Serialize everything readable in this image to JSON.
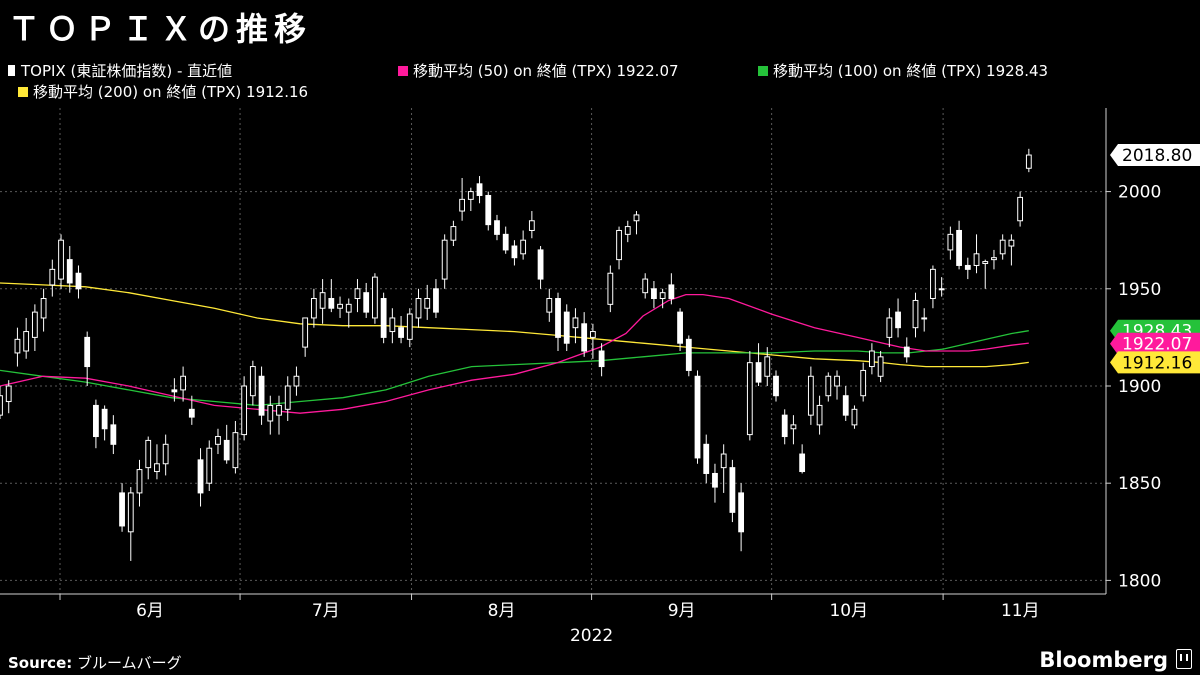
{
  "title": "ＴＯＰＩＸの推移",
  "legend": [
    {
      "label": "TOPIX (東証株価指数) - 直近値",
      "color": "#ffffff",
      "icon": "candlestick-icon"
    },
    {
      "label": "移動平均 (50)  on 終値 (TPX) 1922.07",
      "color": "#ff1a9c"
    },
    {
      "label": "移動平均 (100)  on 終値 (TPX) 1928.43",
      "color": "#25c23a"
    },
    {
      "label": "移動平均 (200)  on 終値 (TPX)   1912.16",
      "color": "#ffe838"
    }
  ],
  "footer": {
    "source_label": "Source:",
    "source_text": "ブルームバーグ",
    "brand": "Bloomberg"
  },
  "chart_data": {
    "type": "candlestick",
    "year_label": "2022",
    "x_ticks": [
      "6月",
      "7月",
      "8月",
      "9月",
      "10月",
      "11月"
    ],
    "x_tick_days": [
      17.5,
      38,
      58.5,
      79.5,
      99,
      119
    ],
    "x_separator_days": [
      7,
      28,
      48,
      69,
      90,
      110
    ],
    "x_range": [
      0,
      129
    ],
    "y_ticks": [
      1800,
      1850,
      1900,
      1950,
      2000
    ],
    "ylim": [
      1793,
      2043
    ],
    "grid": true,
    "last_value_labels": [
      {
        "value": "2018.80",
        "bg": "#ffffff",
        "fg": "#000000",
        "series": "price"
      },
      {
        "value": "1928.43",
        "bg": "#25c23a",
        "fg": "#ffffff",
        "series": "ma100"
      },
      {
        "value": "1922.07",
        "bg": "#ff1a9c",
        "fg": "#ffffff",
        "series": "ma50"
      },
      {
        "value": "1912.16",
        "bg": "#ffe838",
        "fg": "#000000",
        "series": "ma200"
      }
    ],
    "candles": [
      {
        "o": 1885,
        "h": 1900,
        "l": 1883,
        "c": 1895
      },
      {
        "o": 1892,
        "h": 1903,
        "l": 1886,
        "c": 1900
      },
      {
        "o": 1917,
        "h": 1930,
        "l": 1910,
        "c": 1924
      },
      {
        "o": 1918,
        "h": 1935,
        "l": 1914,
        "c": 1928
      },
      {
        "o": 1925,
        "h": 1942,
        "l": 1918,
        "c": 1938
      },
      {
        "o": 1935,
        "h": 1950,
        "l": 1928,
        "c": 1945
      },
      {
        "o": 1952,
        "h": 1965,
        "l": 1946,
        "c": 1960
      },
      {
        "o": 1955,
        "h": 1978,
        "l": 1950,
        "c": 1975
      },
      {
        "o": 1965,
        "h": 1972,
        "l": 1948,
        "c": 1953
      },
      {
        "o": 1958,
        "h": 1962,
        "l": 1945,
        "c": 1950
      },
      {
        "o": 1925,
        "h": 1928,
        "l": 1900,
        "c": 1910
      },
      {
        "o": 1890,
        "h": 1893,
        "l": 1868,
        "c": 1874
      },
      {
        "o": 1888,
        "h": 1890,
        "l": 1872,
        "c": 1878
      },
      {
        "o": 1880,
        "h": 1885,
        "l": 1865,
        "c": 1870
      },
      {
        "o": 1845,
        "h": 1850,
        "l": 1825,
        "c": 1828
      },
      {
        "o": 1825,
        "h": 1848,
        "l": 1810,
        "c": 1845
      },
      {
        "o": 1845,
        "h": 1862,
        "l": 1838,
        "c": 1857
      },
      {
        "o": 1858,
        "h": 1874,
        "l": 1852,
        "c": 1872
      },
      {
        "o": 1856,
        "h": 1870,
        "l": 1852,
        "c": 1860
      },
      {
        "o": 1860,
        "h": 1875,
        "l": 1854,
        "c": 1870
      },
      {
        "o": 1898,
        "h": 1904,
        "l": 1892,
        "c": 1897
      },
      {
        "o": 1898,
        "h": 1910,
        "l": 1892,
        "c": 1905
      },
      {
        "o": 1888,
        "h": 1895,
        "l": 1880,
        "c": 1884
      },
      {
        "o": 1862,
        "h": 1868,
        "l": 1838,
        "c": 1845
      },
      {
        "o": 1850,
        "h": 1872,
        "l": 1846,
        "c": 1868
      },
      {
        "o": 1870,
        "h": 1878,
        "l": 1865,
        "c": 1874
      },
      {
        "o": 1872,
        "h": 1880,
        "l": 1860,
        "c": 1862
      },
      {
        "o": 1858,
        "h": 1882,
        "l": 1855,
        "c": 1876
      },
      {
        "o": 1875,
        "h": 1905,
        "l": 1872,
        "c": 1900
      },
      {
        "o": 1895,
        "h": 1913,
        "l": 1890,
        "c": 1910
      },
      {
        "o": 1905,
        "h": 1910,
        "l": 1880,
        "c": 1885
      },
      {
        "o": 1882,
        "h": 1895,
        "l": 1875,
        "c": 1890
      },
      {
        "o": 1885,
        "h": 1895,
        "l": 1875,
        "c": 1890
      },
      {
        "o": 1888,
        "h": 1905,
        "l": 1882,
        "c": 1900
      },
      {
        "o": 1900,
        "h": 1910,
        "l": 1895,
        "c": 1905
      },
      {
        "o": 1920,
        "h": 1935,
        "l": 1915,
        "c": 1935
      },
      {
        "o": 1935,
        "h": 1950,
        "l": 1930,
        "c": 1945
      },
      {
        "o": 1940,
        "h": 1955,
        "l": 1932,
        "c": 1948
      },
      {
        "o": 1945,
        "h": 1955,
        "l": 1938,
        "c": 1940
      },
      {
        "o": 1940,
        "h": 1946,
        "l": 1935,
        "c": 1942
      },
      {
        "o": 1938,
        "h": 1945,
        "l": 1930,
        "c": 1942
      },
      {
        "o": 1945,
        "h": 1955,
        "l": 1938,
        "c": 1950
      },
      {
        "o": 1948,
        "h": 1953,
        "l": 1935,
        "c": 1938
      },
      {
        "o": 1935,
        "h": 1958,
        "l": 1932,
        "c": 1956
      },
      {
        "o": 1945,
        "h": 1948,
        "l": 1922,
        "c": 1925
      },
      {
        "o": 1928,
        "h": 1940,
        "l": 1922,
        "c": 1935
      },
      {
        "o": 1930,
        "h": 1936,
        "l": 1922,
        "c": 1925
      },
      {
        "o": 1924,
        "h": 1940,
        "l": 1920,
        "c": 1937
      },
      {
        "o": 1935,
        "h": 1950,
        "l": 1930,
        "c": 1945
      },
      {
        "o": 1940,
        "h": 1952,
        "l": 1934,
        "c": 1945
      },
      {
        "o": 1950,
        "h": 1955,
        "l": 1935,
        "c": 1938
      },
      {
        "o": 1955,
        "h": 1978,
        "l": 1950,
        "c": 1975
      },
      {
        "o": 1975,
        "h": 1985,
        "l": 1972,
        "c": 1982
      },
      {
        "o": 1990,
        "h": 2007,
        "l": 1985,
        "c": 1996
      },
      {
        "o": 1996,
        "h": 2002,
        "l": 1990,
        "c": 2000
      },
      {
        "o": 2004,
        "h": 2008,
        "l": 1994,
        "c": 1998
      },
      {
        "o": 1998,
        "h": 2000,
        "l": 1980,
        "c": 1983
      },
      {
        "o": 1985,
        "h": 1988,
        "l": 1975,
        "c": 1978
      },
      {
        "o": 1978,
        "h": 1982,
        "l": 1968,
        "c": 1970
      },
      {
        "o": 1972,
        "h": 1975,
        "l": 1962,
        "c": 1966
      },
      {
        "o": 1968,
        "h": 1980,
        "l": 1965,
        "c": 1975
      },
      {
        "o": 1980,
        "h": 1990,
        "l": 1976,
        "c": 1985
      },
      {
        "o": 1970,
        "h": 1972,
        "l": 1950,
        "c": 1955
      },
      {
        "o": 1938,
        "h": 1950,
        "l": 1933,
        "c": 1945
      },
      {
        "o": 1945,
        "h": 1948,
        "l": 1918,
        "c": 1925
      },
      {
        "o": 1938,
        "h": 1942,
        "l": 1918,
        "c": 1922
      },
      {
        "o": 1930,
        "h": 1940,
        "l": 1922,
        "c": 1935
      },
      {
        "o": 1932,
        "h": 1938,
        "l": 1915,
        "c": 1918
      },
      {
        "o": 1925,
        "h": 1932,
        "l": 1914,
        "c": 1928
      },
      {
        "o": 1918,
        "h": 1922,
        "l": 1905,
        "c": 1910
      },
      {
        "o": 1942,
        "h": 1962,
        "l": 1938,
        "c": 1958
      },
      {
        "o": 1965,
        "h": 1982,
        "l": 1960,
        "c": 1980
      },
      {
        "o": 1978,
        "h": 1985,
        "l": 1974,
        "c": 1982
      },
      {
        "o": 1985,
        "h": 1990,
        "l": 1978,
        "c": 1988
      },
      {
        "o": 1948,
        "h": 1958,
        "l": 1945,
        "c": 1955
      },
      {
        "o": 1950,
        "h": 1954,
        "l": 1940,
        "c": 1945
      },
      {
        "o": 1945,
        "h": 1950,
        "l": 1940,
        "c": 1948
      },
      {
        "o": 1952,
        "h": 1958,
        "l": 1942,
        "c": 1945
      },
      {
        "o": 1938,
        "h": 1940,
        "l": 1918,
        "c": 1922
      },
      {
        "o": 1924,
        "h": 1926,
        "l": 1905,
        "c": 1908
      },
      {
        "o": 1905,
        "h": 1908,
        "l": 1860,
        "c": 1863
      },
      {
        "o": 1870,
        "h": 1875,
        "l": 1850,
        "c": 1855
      },
      {
        "o": 1855,
        "h": 1860,
        "l": 1840,
        "c": 1848
      },
      {
        "o": 1858,
        "h": 1870,
        "l": 1845,
        "c": 1865
      },
      {
        "o": 1858,
        "h": 1862,
        "l": 1830,
        "c": 1835
      },
      {
        "o": 1845,
        "h": 1850,
        "l": 1815,
        "c": 1825
      },
      {
        "o": 1875,
        "h": 1918,
        "l": 1872,
        "c": 1912
      },
      {
        "o": 1912,
        "h": 1922,
        "l": 1900,
        "c": 1902
      },
      {
        "o": 1905,
        "h": 1920,
        "l": 1900,
        "c": 1915
      },
      {
        "o": 1905,
        "h": 1908,
        "l": 1892,
        "c": 1895
      },
      {
        "o": 1885,
        "h": 1888,
        "l": 1870,
        "c": 1874
      },
      {
        "o": 1878,
        "h": 1885,
        "l": 1870,
        "c": 1880
      },
      {
        "o": 1865,
        "h": 1870,
        "l": 1855,
        "c": 1856
      },
      {
        "o": 1885,
        "h": 1910,
        "l": 1880,
        "c": 1905
      },
      {
        "o": 1880,
        "h": 1895,
        "l": 1875,
        "c": 1890
      },
      {
        "o": 1895,
        "h": 1907,
        "l": 1892,
        "c": 1905
      },
      {
        "o": 1900,
        "h": 1908,
        "l": 1893,
        "c": 1905
      },
      {
        "o": 1895,
        "h": 1900,
        "l": 1882,
        "c": 1885
      },
      {
        "o": 1880,
        "h": 1890,
        "l": 1878,
        "c": 1888
      },
      {
        "o": 1895,
        "h": 1912,
        "l": 1892,
        "c": 1908
      },
      {
        "o": 1910,
        "h": 1922,
        "l": 1906,
        "c": 1918
      },
      {
        "o": 1905,
        "h": 1918,
        "l": 1902,
        "c": 1915
      },
      {
        "o": 1925,
        "h": 1940,
        "l": 1920,
        "c": 1935
      },
      {
        "o": 1938,
        "h": 1945,
        "l": 1925,
        "c": 1930
      },
      {
        "o": 1920,
        "h": 1925,
        "l": 1912,
        "c": 1915
      },
      {
        "o": 1930,
        "h": 1948,
        "l": 1925,
        "c": 1944
      },
      {
        "o": 1935,
        "h": 1940,
        "l": 1928,
        "c": 1935
      },
      {
        "o": 1945,
        "h": 1962,
        "l": 1940,
        "c": 1960
      },
      {
        "o": 1950,
        "h": 1956,
        "l": 1946,
        "c": 1950
      },
      {
        "o": 1970,
        "h": 1982,
        "l": 1965,
        "c": 1978
      },
      {
        "o": 1980,
        "h": 1985,
        "l": 1960,
        "c": 1962
      },
      {
        "o": 1962,
        "h": 1966,
        "l": 1955,
        "c": 1960
      },
      {
        "o": 1962,
        "h": 1978,
        "l": 1958,
        "c": 1968
      },
      {
        "o": 1963,
        "h": 1965,
        "l": 1950,
        "c": 1964
      },
      {
        "o": 1965,
        "h": 1970,
        "l": 1960,
        "c": 1966
      },
      {
        "o": 1968,
        "h": 1978,
        "l": 1965,
        "c": 1975
      },
      {
        "o": 1972,
        "h": 1978,
        "l": 1962,
        "c": 1975
      },
      {
        "o": 1985,
        "h": 2000,
        "l": 1982,
        "c": 1997
      },
      {
        "o": 2012,
        "h": 2022,
        "l": 2010,
        "c": 2018.8
      }
    ],
    "ma50": [
      [
        0,
        1900
      ],
      [
        5,
        1905
      ],
      [
        10,
        1904
      ],
      [
        15,
        1900
      ],
      [
        20,
        1895
      ],
      [
        25,
        1890
      ],
      [
        30,
        1888
      ],
      [
        35,
        1886
      ],
      [
        40,
        1888
      ],
      [
        45,
        1892
      ],
      [
        50,
        1898
      ],
      [
        55,
        1903
      ],
      [
        60,
        1906
      ],
      [
        65,
        1912
      ],
      [
        70,
        1920
      ],
      [
        73,
        1927
      ],
      [
        75,
        1936
      ],
      [
        78,
        1944
      ],
      [
        80,
        1947
      ],
      [
        82,
        1947
      ],
      [
        85,
        1945
      ],
      [
        90,
        1937
      ],
      [
        95,
        1930
      ],
      [
        100,
        1925
      ],
      [
        103,
        1922
      ],
      [
        105,
        1920
      ],
      [
        108,
        1918
      ],
      [
        110,
        1918
      ],
      [
        113,
        1918
      ],
      [
        115,
        1919
      ],
      [
        118,
        1921
      ],
      [
        120,
        1922.07
      ]
    ],
    "ma100": [
      [
        0,
        1908
      ],
      [
        5,
        1905
      ],
      [
        10,
        1902
      ],
      [
        15,
        1898
      ],
      [
        20,
        1894
      ],
      [
        25,
        1892
      ],
      [
        30,
        1890
      ],
      [
        35,
        1892
      ],
      [
        40,
        1894
      ],
      [
        45,
        1898
      ],
      [
        50,
        1905
      ],
      [
        55,
        1910
      ],
      [
        60,
        1911
      ],
      [
        65,
        1912
      ],
      [
        70,
        1913
      ],
      [
        75,
        1915
      ],
      [
        80,
        1917
      ],
      [
        85,
        1917
      ],
      [
        90,
        1917
      ],
      [
        95,
        1918
      ],
      [
        100,
        1918
      ],
      [
        103,
        1917
      ],
      [
        106,
        1917
      ],
      [
        108,
        1918
      ],
      [
        110,
        1919
      ],
      [
        113,
        1922
      ],
      [
        116,
        1925
      ],
      [
        118,
        1927
      ],
      [
        120,
        1928.43
      ]
    ],
    "ma200": [
      [
        0,
        1953
      ],
      [
        5,
        1952
      ],
      [
        10,
        1951
      ],
      [
        15,
        1948
      ],
      [
        20,
        1944
      ],
      [
        25,
        1940
      ],
      [
        30,
        1935
      ],
      [
        35,
        1932
      ],
      [
        40,
        1931
      ],
      [
        45,
        1931
      ],
      [
        50,
        1930
      ],
      [
        55,
        1929
      ],
      [
        60,
        1928
      ],
      [
        65,
        1926
      ],
      [
        70,
        1924
      ],
      [
        75,
        1922
      ],
      [
        80,
        1920
      ],
      [
        85,
        1918
      ],
      [
        90,
        1916
      ],
      [
        95,
        1914
      ],
      [
        100,
        1913
      ],
      [
        103,
        1912
      ],
      [
        105,
        1911
      ],
      [
        108,
        1910
      ],
      [
        110,
        1910
      ],
      [
        113,
        1910
      ],
      [
        115,
        1910
      ],
      [
        118,
        1911
      ],
      [
        120,
        1912.16
      ]
    ]
  }
}
